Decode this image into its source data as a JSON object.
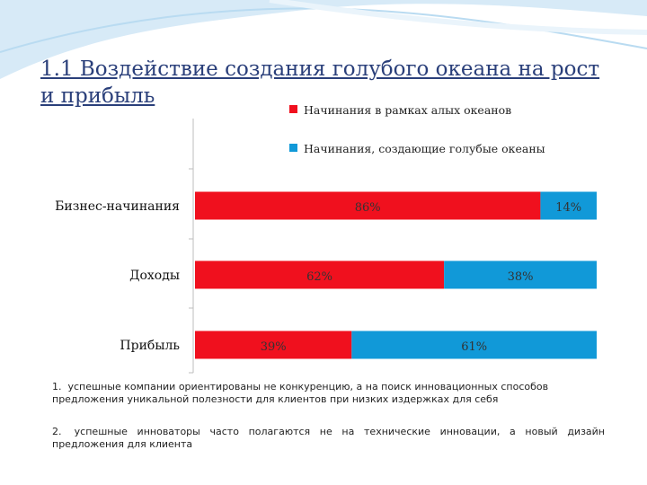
{
  "slide": {
    "title": "1.1 Воздействие создания голубого  океана на рост и прибыль"
  },
  "colors": {
    "red": "#f0101e",
    "blue": "#1199d8",
    "title": "#2a3f7a",
    "wave": "#d7eaf7"
  },
  "chart_data": {
    "type": "bar",
    "orientation": "horizontal",
    "stacked": true,
    "percent": true,
    "categories": [
      "Бизнес-начинания",
      "Доходы",
      "Прибыль"
    ],
    "series": [
      {
        "name": "Начинания в рамках алых океанов",
        "values": [
          86,
          62,
          39
        ],
        "labels": [
          "86%",
          "62%",
          "39%"
        ],
        "color": "#f0101e"
      },
      {
        "name": "Начинания, создающие голубые океаны",
        "values": [
          14,
          38,
          61
        ],
        "labels": [
          "14%",
          "38%",
          "61%"
        ],
        "color": "#1199d8"
      }
    ],
    "xlim": [
      0,
      100
    ],
    "grid": false,
    "legend_position": "top-right"
  },
  "notes": [
    {
      "num": "1.",
      "text": "успешные компании ориентированы не конкуренцию, а на поиск инновационных способов предложения уникальной полезности для клиентов при низких издержках для себя"
    },
    {
      "num": "2.",
      "text": "успешные инноваторы часто полагаются не на технические инновации, а новый дизайн предложения для клиента"
    }
  ]
}
